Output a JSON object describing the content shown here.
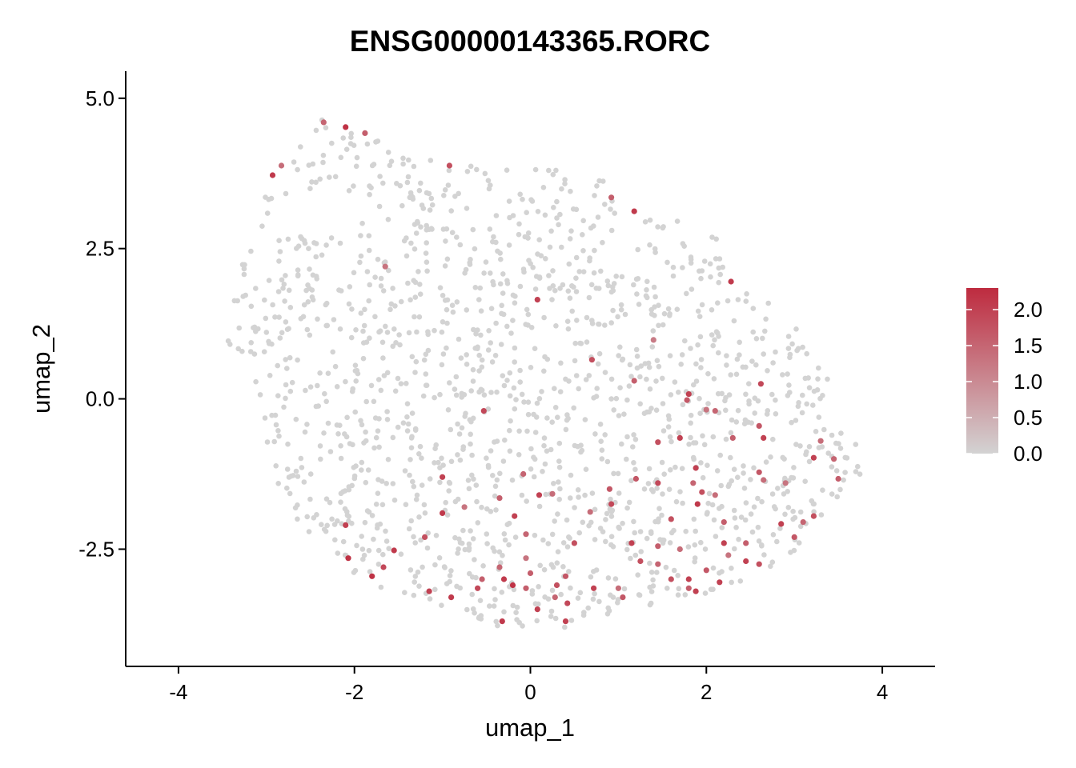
{
  "chart_data": {
    "type": "scatter",
    "title": "ENSG00000143365.RORC",
    "xlabel": "umap_1",
    "ylabel": "umap_2",
    "xlim": [
      -4.6,
      4.6
    ],
    "ylim": [
      -4.45,
      5.45
    ],
    "x_ticks": [
      -4,
      -2,
      0,
      2,
      4
    ],
    "x_tick_labels": [
      "-4",
      "-2",
      "0",
      "2",
      "4"
    ],
    "y_ticks": [
      -2.5,
      0.0,
      2.5,
      5.0
    ],
    "y_tick_labels": [
      "-2.5",
      "0.0",
      "2.5",
      "5.0"
    ],
    "grid": false,
    "legend": {
      "type": "colorbar",
      "placement": "right",
      "min": 0.0,
      "max": 2.3,
      "ticks": [
        0.0,
        0.5,
        1.0,
        1.5,
        2.0
      ],
      "tick_labels": [
        "0.0",
        "0.5",
        "1.0",
        "1.5",
        "2.0"
      ],
      "color_low": "#d3d3d3",
      "color_high": "#be2b3f"
    },
    "background_points": {
      "color": "#d3d3d3",
      "expression": 0.0,
      "approx_count": 1500,
      "note_region_center": [
        0.2,
        0.6
      ]
    },
    "expressed_points": [
      {
        "x": -2.35,
        "y": 4.6,
        "v": 1.5
      },
      {
        "x": -2.1,
        "y": 4.52,
        "v": 2.2
      },
      {
        "x": -1.88,
        "y": 4.42,
        "v": 1.6
      },
      {
        "x": -2.93,
        "y": 3.72,
        "v": 2.1
      },
      {
        "x": -2.83,
        "y": 3.88,
        "v": 1.4
      },
      {
        "x": -0.92,
        "y": 3.88,
        "v": 1.8
      },
      {
        "x": 0.92,
        "y": 3.35,
        "v": 1.6
      },
      {
        "x": 1.18,
        "y": 3.12,
        "v": 2.1
      },
      {
        "x": -1.65,
        "y": 2.2,
        "v": 1.3
      },
      {
        "x": 0.08,
        "y": 1.65,
        "v": 2.0
      },
      {
        "x": 2.28,
        "y": 1.95,
        "v": 2.1
      },
      {
        "x": 1.4,
        "y": 0.98,
        "v": 1.2
      },
      {
        "x": 0.7,
        "y": 0.65,
        "v": 1.8
      },
      {
        "x": 1.18,
        "y": 0.3,
        "v": 1.6
      },
      {
        "x": 2.62,
        "y": 0.25,
        "v": 1.9
      },
      {
        "x": 1.78,
        "y": -0.02,
        "v": 1.7
      },
      {
        "x": 1.8,
        "y": 0.08,
        "v": 2.0
      },
      {
        "x": 2.0,
        "y": -0.18,
        "v": 1.3
      },
      {
        "x": 2.1,
        "y": -0.2,
        "v": 1.5
      },
      {
        "x": 2.6,
        "y": -0.45,
        "v": 1.7
      },
      {
        "x": 2.3,
        "y": -0.65,
        "v": 1.6
      },
      {
        "x": 2.65,
        "y": -0.65,
        "v": 2.0
      },
      {
        "x": 1.7,
        "y": -0.65,
        "v": 2.0
      },
      {
        "x": 1.45,
        "y": -0.72,
        "v": 1.8
      },
      {
        "x": -0.53,
        "y": -0.2,
        "v": 1.9
      },
      {
        "x": 3.3,
        "y": -0.7,
        "v": 1.4
      },
      {
        "x": 3.22,
        "y": -0.98,
        "v": 2.0
      },
      {
        "x": 3.45,
        "y": -1.0,
        "v": 1.5
      },
      {
        "x": 2.6,
        "y": -1.22,
        "v": 1.7
      },
      {
        "x": 2.65,
        "y": -1.35,
        "v": 1.4
      },
      {
        "x": 2.9,
        "y": -1.4,
        "v": 1.3
      },
      {
        "x": 3.5,
        "y": -1.33,
        "v": 1.6
      },
      {
        "x": 1.88,
        "y": -1.15,
        "v": 2.0
      },
      {
        "x": 1.85,
        "y": -1.4,
        "v": 1.5
      },
      {
        "x": 1.2,
        "y": -1.33,
        "v": 1.7
      },
      {
        "x": 1.45,
        "y": -1.4,
        "v": 1.9
      },
      {
        "x": 1.95,
        "y": -1.55,
        "v": 1.8
      },
      {
        "x": 2.1,
        "y": -1.6,
        "v": 1.4
      },
      {
        "x": 1.9,
        "y": -1.75,
        "v": 2.1
      },
      {
        "x": -1.0,
        "y": -1.3,
        "v": 2.0
      },
      {
        "x": -0.08,
        "y": -1.25,
        "v": 1.5
      },
      {
        "x": 0.9,
        "y": -1.5,
        "v": 1.7
      },
      {
        "x": 0.1,
        "y": -1.6,
        "v": 2.0
      },
      {
        "x": 0.25,
        "y": -1.58,
        "v": 1.4
      },
      {
        "x": -0.35,
        "y": -1.65,
        "v": 1.6
      },
      {
        "x": -1.0,
        "y": -1.9,
        "v": 2.1
      },
      {
        "x": -0.75,
        "y": -1.8,
        "v": 1.3
      },
      {
        "x": -0.18,
        "y": -1.95,
        "v": 2.0
      },
      {
        "x": 0.68,
        "y": -1.88,
        "v": 1.4
      },
      {
        "x": 0.92,
        "y": -1.75,
        "v": 1.9
      },
      {
        "x": 1.6,
        "y": -2.0,
        "v": 1.8
      },
      {
        "x": 2.2,
        "y": -2.05,
        "v": 1.6
      },
      {
        "x": 2.85,
        "y": -2.08,
        "v": 2.0
      },
      {
        "x": 3.1,
        "y": -2.05,
        "v": 1.5
      },
      {
        "x": 3.22,
        "y": -1.95,
        "v": 1.8
      },
      {
        "x": -2.1,
        "y": -2.1,
        "v": 2.0
      },
      {
        "x": -1.2,
        "y": -2.3,
        "v": 1.8
      },
      {
        "x": -0.05,
        "y": -2.25,
        "v": 1.5
      },
      {
        "x": 1.15,
        "y": -2.4,
        "v": 2.0
      },
      {
        "x": 2.2,
        "y": -2.4,
        "v": 2.0
      },
      {
        "x": 2.45,
        "y": -2.4,
        "v": 1.6
      },
      {
        "x": 3.0,
        "y": -2.3,
        "v": 1.7
      },
      {
        "x": -1.55,
        "y": -2.52,
        "v": 2.1
      },
      {
        "x": -2.07,
        "y": -2.65,
        "v": 2.2
      },
      {
        "x": 0.5,
        "y": -2.4,
        "v": 1.8
      },
      {
        "x": 1.45,
        "y": -2.45,
        "v": 1.6
      },
      {
        "x": 1.7,
        "y": -2.5,
        "v": 1.4
      },
      {
        "x": -0.05,
        "y": -2.65,
        "v": 1.3
      },
      {
        "x": 1.25,
        "y": -2.7,
        "v": 1.8
      },
      {
        "x": 1.45,
        "y": -2.75,
        "v": 1.5
      },
      {
        "x": 2.0,
        "y": -2.85,
        "v": 1.7
      },
      {
        "x": 2.25,
        "y": -2.6,
        "v": 1.3
      },
      {
        "x": 2.45,
        "y": -2.7,
        "v": 2.0
      },
      {
        "x": 2.6,
        "y": -2.75,
        "v": 1.8
      },
      {
        "x": -1.67,
        "y": -2.8,
        "v": 1.9
      },
      {
        "x": -1.8,
        "y": -2.95,
        "v": 2.2
      },
      {
        "x": -0.35,
        "y": -2.8,
        "v": 1.5
      },
      {
        "x": 0.0,
        "y": -2.9,
        "v": 1.6
      },
      {
        "x": 0.4,
        "y": -2.95,
        "v": 1.7
      },
      {
        "x": 1.8,
        "y": -3.0,
        "v": 2.0
      },
      {
        "x": 1.6,
        "y": -3.0,
        "v": 1.8
      },
      {
        "x": 2.15,
        "y": -3.05,
        "v": 2.0
      },
      {
        "x": -0.55,
        "y": -3.0,
        "v": 1.6
      },
      {
        "x": -0.3,
        "y": -3.0,
        "v": 2.1
      },
      {
        "x": -1.15,
        "y": -3.2,
        "v": 2.0
      },
      {
        "x": -0.9,
        "y": -3.3,
        "v": 2.1
      },
      {
        "x": -0.6,
        "y": -3.15,
        "v": 1.9
      },
      {
        "x": -0.2,
        "y": -3.1,
        "v": 2.2
      },
      {
        "x": -0.05,
        "y": -3.15,
        "v": 1.6
      },
      {
        "x": 0.3,
        "y": -3.1,
        "v": 1.8
      },
      {
        "x": 0.72,
        "y": -3.15,
        "v": 2.0
      },
      {
        "x": 1.0,
        "y": -3.15,
        "v": 1.4
      },
      {
        "x": 1.8,
        "y": -3.15,
        "v": 1.6
      },
      {
        "x": 1.88,
        "y": -3.2,
        "v": 2.0
      },
      {
        "x": 1.05,
        "y": -3.3,
        "v": 1.7
      },
      {
        "x": 0.28,
        "y": -3.3,
        "v": 1.5
      },
      {
        "x": 0.42,
        "y": -3.4,
        "v": 1.9
      },
      {
        "x": 0.08,
        "y": -3.5,
        "v": 2.0
      },
      {
        "x": -0.32,
        "y": -3.7,
        "v": 2.1
      },
      {
        "x": 0.4,
        "y": -3.7,
        "v": 2.0
      }
    ]
  }
}
